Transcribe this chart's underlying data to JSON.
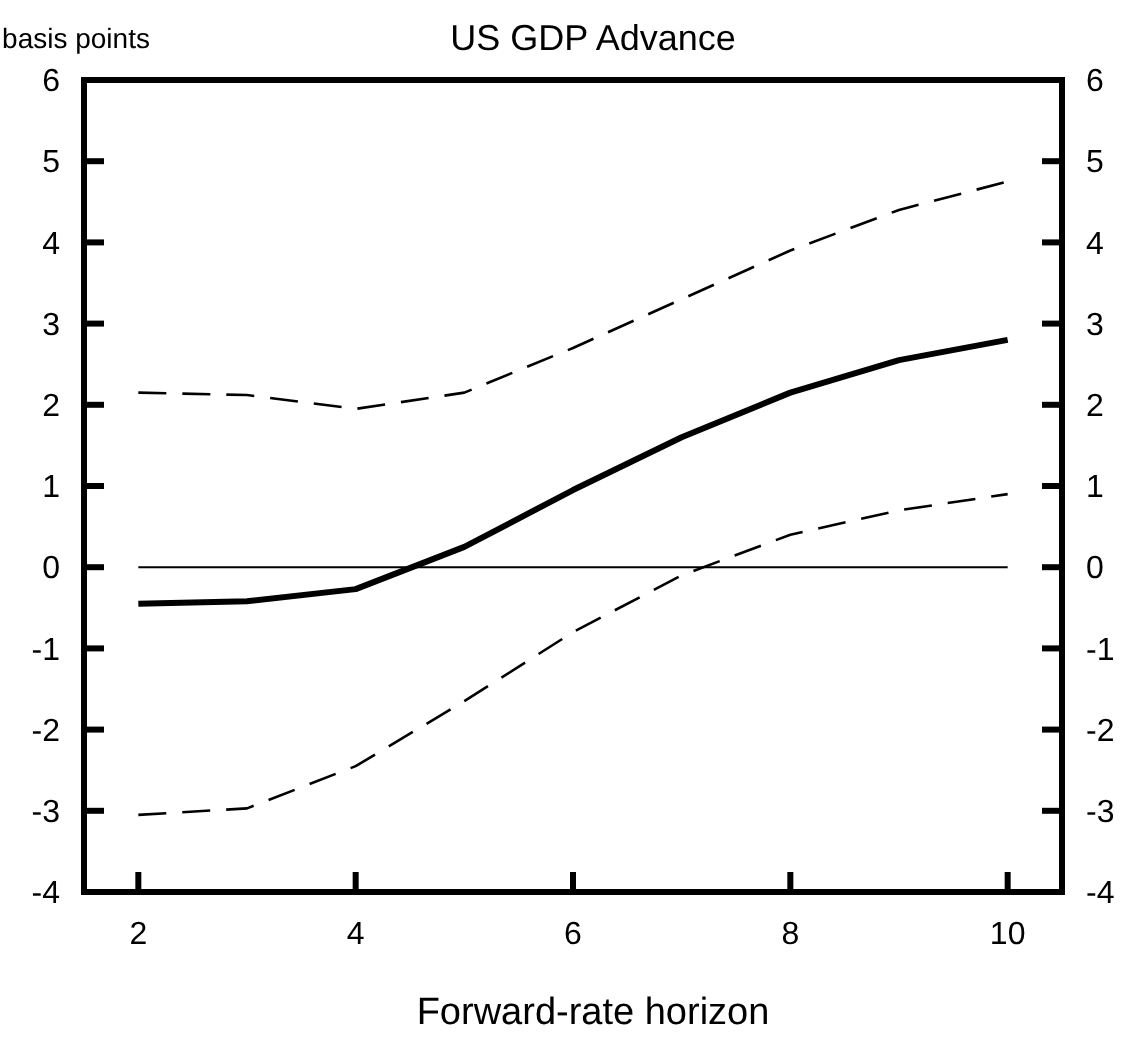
{
  "chart_data": {
    "type": "line",
    "title": "US GDP Advance",
    "ylabel": "basis points",
    "xlabel": "Forward-rate horizon",
    "x": [
      2,
      3,
      4,
      5,
      6,
      7,
      8,
      9,
      10
    ],
    "series": [
      {
        "color": "#000000",
        "line_style": "solid",
        "values": [
          -0.45,
          -0.42,
          -0.27,
          0.25,
          0.95,
          1.6,
          2.15,
          2.55,
          2.8
        ]
      },
      {
        "color": "#000000",
        "line_style": "dashed",
        "values": [
          2.15,
          2.12,
          1.95,
          2.15,
          2.7,
          3.3,
          3.9,
          4.4,
          4.75
        ]
      },
      {
        "color": "#000000",
        "line_style": "dashed",
        "values": [
          -3.05,
          -2.97,
          -2.45,
          -1.65,
          -0.8,
          -0.1,
          0.4,
          0.7,
          0.9
        ]
      }
    ],
    "xlim": [
      1.5,
      10.5
    ],
    "xticks": [
      2,
      4,
      6,
      8,
      10
    ],
    "ylim": [
      -4,
      6
    ],
    "yticks": [
      -4,
      -3,
      -2,
      -1,
      0,
      1,
      2,
      3,
      4,
      5,
      6
    ],
    "y2lim": [
      -4,
      6
    ],
    "y2ticks": [
      -4,
      -3,
      -2,
      -1,
      0,
      1,
      2,
      3,
      4,
      5,
      6
    ],
    "ref_lines": [
      {
        "axis": "y",
        "value": 0,
        "color": "#000000"
      }
    ],
    "grid": false,
    "marker": "none"
  }
}
